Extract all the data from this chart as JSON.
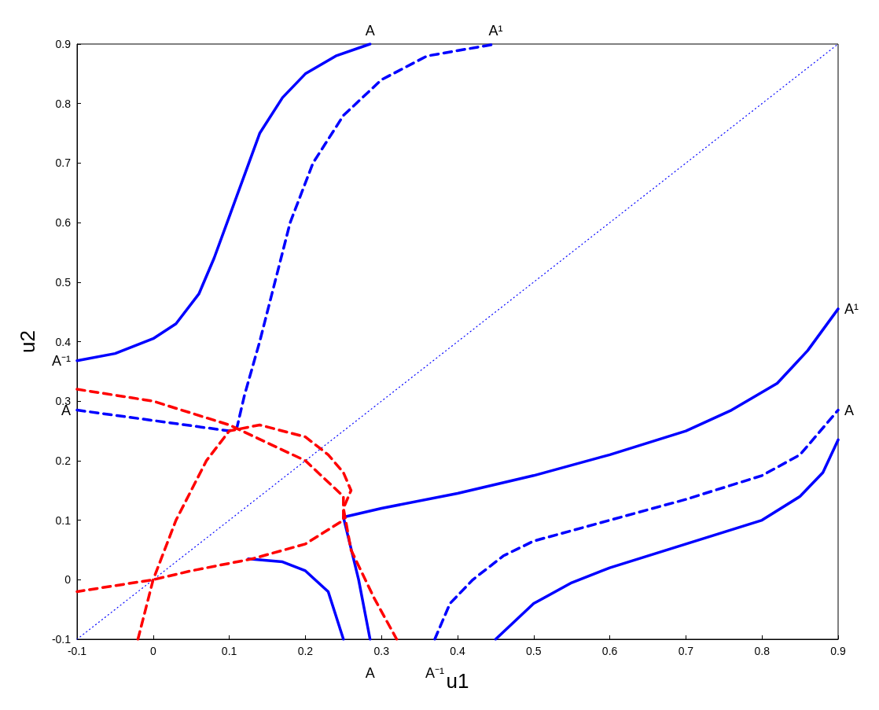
{
  "chart_data": {
    "type": "line",
    "xlabel": "u1",
    "ylabel": "u2",
    "xlim": [
      -0.1,
      0.9
    ],
    "ylim": [
      -0.1,
      0.9
    ],
    "xticks": [
      -0.1,
      0,
      0.1,
      0.2,
      0.3,
      0.4,
      0.5,
      0.6,
      0.7,
      0.8,
      0.9
    ],
    "yticks": [
      -0.1,
      0,
      0.1,
      0.2,
      0.3,
      0.4,
      0.5,
      0.6,
      0.7,
      0.8,
      0.9
    ],
    "grid": false,
    "marker": "none",
    "series": [
      {
        "color": "#0000ff",
        "line_style": "solid",
        "x": [
          -0.1,
          -0.05,
          0,
          0.03,
          0.06,
          0.08,
          0.1,
          0.12,
          0.14,
          0.17,
          0.2,
          0.24,
          0.285
        ],
        "values": [
          0.368,
          0.38,
          0.405,
          0.43,
          0.48,
          0.54,
          0.61,
          0.68,
          0.75,
          0.81,
          0.85,
          0.88,
          0.9
        ]
      },
      {
        "color": "#0000ff",
        "line_style": "dashed",
        "x": [
          -0.1,
          0.1,
          0.11,
          0.12,
          0.14,
          0.16,
          0.18,
          0.21,
          0.25,
          0.3,
          0.36,
          0.45
        ],
        "values": [
          0.285,
          0.25,
          0.255,
          0.31,
          0.4,
          0.5,
          0.6,
          0.7,
          0.78,
          0.84,
          0.88,
          0.9
        ]
      },
      {
        "color": "#0000ff",
        "line_style": "solid",
        "x": [
          0.285,
          0.27,
          0.25,
          0.3,
          0.4,
          0.5,
          0.6,
          0.7,
          0.76,
          0.82,
          0.86,
          0.9
        ],
        "values": [
          -0.1,
          0,
          0.105,
          0.12,
          0.145,
          0.175,
          0.21,
          0.25,
          0.285,
          0.33,
          0.385,
          0.455
        ]
      },
      {
        "color": "#0000ff",
        "line_style": "dashed",
        "x": [
          0.37,
          0.39,
          0.42,
          0.46,
          0.5,
          0.6,
          0.7,
          0.8,
          0.85,
          0.9
        ],
        "values": [
          -0.1,
          -0.04,
          0,
          0.04,
          0.065,
          0.1,
          0.135,
          0.175,
          0.21,
          0.285
        ]
      },
      {
        "color": "#0000ff",
        "line_style": "solid",
        "x": [
          0.45,
          0.5,
          0.55,
          0.6,
          0.7,
          0.8,
          0.85,
          0.88,
          0.9
        ],
        "values": [
          -0.1,
          -0.04,
          -0.005,
          0.02,
          0.06,
          0.1,
          0.14,
          0.18,
          0.235
        ]
      },
      {
        "color": "#0000ff",
        "line_style": "solid",
        "x": [
          0.125,
          0.17,
          0.2,
          0.23,
          0.25
        ],
        "values": [
          0.035,
          0.03,
          0.015,
          -0.02,
          -0.1
        ]
      },
      {
        "color": "#0000ff",
        "line_style": "dotted",
        "x": [
          -0.1,
          0.9
        ],
        "values": [
          -0.1,
          0.9
        ]
      },
      {
        "color": "#ff0000",
        "line_style": "dashed",
        "x": [
          -0.02,
          0,
          0.03,
          0.07,
          0.1,
          0.14,
          0.2,
          0.23,
          0.25,
          0.26,
          0.25,
          0.26,
          0.29,
          0.32
        ],
        "values": [
          -0.1,
          0,
          0.1,
          0.2,
          0.25,
          0.26,
          0.24,
          0.21,
          0.18,
          0.15,
          0.12,
          0.05,
          -0.03,
          -0.1
        ]
      },
      {
        "color": "#ff0000",
        "line_style": "dashed",
        "x": [
          -0.1,
          0,
          0.1,
          0.2,
          0.25,
          0.25,
          0.2,
          0.13,
          0.05,
          0,
          -0.1
        ],
        "values": [
          0.32,
          0.3,
          0.26,
          0.2,
          0.14,
          0.1,
          0.06,
          0.035,
          0.015,
          0,
          -0.02
        ]
      }
    ],
    "annotations": [
      {
        "text": "A",
        "x": 0.285,
        "y": 0.9
      },
      {
        "text": "A¹",
        "x": 0.45,
        "y": 0.9
      },
      {
        "text": "A⁻¹",
        "x": -0.1,
        "y": 0.368
      },
      {
        "text": "A",
        "x": -0.1,
        "y": 0.285
      },
      {
        "text": "A¹",
        "x": 0.9,
        "y": 0.455
      },
      {
        "text": "A",
        "x": 0.9,
        "y": 0.285
      },
      {
        "text": "A",
        "x": 0.285,
        "y": -0.1
      },
      {
        "text": "A⁻¹",
        "x": 0.37,
        "y": -0.1
      }
    ]
  }
}
